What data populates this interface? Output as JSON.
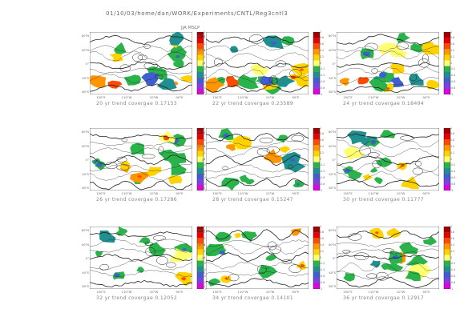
{
  "header": {
    "path": "01/10/03/home/dan/WORK/Experiments/CNTL/Reg3cntl3"
  },
  "figure_title": "JJA MSLP",
  "lat_labels": [
    "80°N",
    "40°N",
    "0°",
    "40°S",
    "80°S"
  ],
  "lon_labels": [
    "150°E",
    "110°W",
    "10°W",
    "90°E"
  ],
  "colorbar": {
    "labels": [
      "1",
      "0.8",
      "0.6",
      "0.4",
      "0.2",
      "0",
      "-0.2",
      "-0.4",
      "-0.6",
      "-0.8",
      "-1"
    ],
    "colors": [
      "#a00000",
      "#e60000",
      "#ff4a00",
      "#ff9600",
      "#ffd200",
      "#ffff70",
      "#2ab34a",
      "#1f8f8f",
      "#3f5fd0",
      "#8040e0",
      "#e000e0"
    ]
  },
  "panels": [
    {
      "caption": "20 yr trend covergae 0.17153",
      "cap_fontsize": "small"
    },
    {
      "caption": "22 yr trend covergae 0.23589"
    },
    {
      "caption": "24 yr trend covergae 0.18494"
    },
    {
      "caption": "26 yr trend covergae 0.17286"
    },
    {
      "caption": "28 yr trend covergae 0.15247"
    },
    {
      "caption": "30 yr trend covergae 0.11777"
    },
    {
      "caption": "32 yr trend covergae 0.12052"
    },
    {
      "caption": "34 yr trend covergae 0.14101"
    },
    {
      "caption": "36 yr trend covergae 0.12917"
    }
  ]
}
